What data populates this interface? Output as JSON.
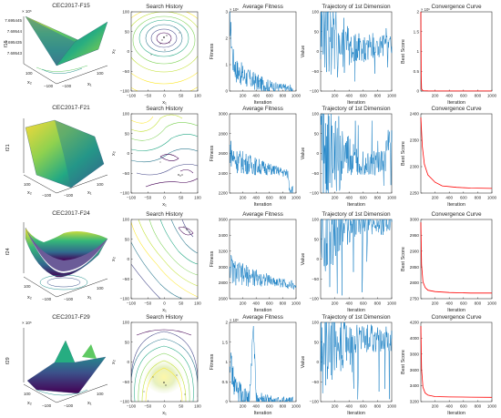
{
  "figure": {
    "rows": [
      {
        "function": "CEC2017-F15",
        "surface": {
          "title": "CEC2017-F15",
          "zlabel": "f15",
          "x1label": "x₁",
          "x2label": "x₂",
          "zticks": [
            "7.695445",
            "7.69544",
            "7.695435",
            "7.69543"
          ],
          "zexp": "× 10⁶",
          "tickA": [
            "100",
            "−100"
          ],
          "tickB": [
            "−100",
            "100"
          ]
        },
        "history": {
          "title": "Search History",
          "xlabel": "x₁",
          "ylabel": "x₂",
          "xticks": [
            "−100",
            "−50",
            "0",
            "50",
            "100"
          ],
          "yticks": [
            "100",
            "50",
            "0",
            "−50",
            "−100"
          ]
        },
        "fitness": {
          "title": "Average Fitness",
          "xlabel": "Iteration",
          "ylabel": "Fitness",
          "xticks": [
            "200",
            "400",
            "600",
            "800",
            "1000"
          ],
          "yticks": [
            "3",
            "2",
            "1",
            "0"
          ],
          "yexp": "× 10⁶"
        },
        "trajectory": {
          "title": "Trajectory of 1st Dimension",
          "xlabel": "Iteration",
          "ylabel": "Value",
          "xticks": [
            "200",
            "400",
            "600",
            "800",
            "1000"
          ],
          "yticks": [
            "100",
            "50",
            "0",
            "−50",
            "−100"
          ]
        },
        "convergence": {
          "title": "Convergence Curve",
          "xlabel": "Iteration",
          "ylabel": "Best Score",
          "xticks": [
            "200",
            "400",
            "600",
            "800",
            "1000"
          ],
          "yticks": [
            "2",
            "1.5",
            "1",
            "0.5",
            "0"
          ],
          "yexp": "× 10⁶"
        }
      },
      {
        "function": "CEC2017-F21",
        "surface": {
          "title": "CEC2017-F21",
          "zlabel": "f21",
          "x1label": "x₁",
          "x2label": "x₂",
          "zticks": [],
          "zexp": "",
          "tickA": [
            "100",
            "−100"
          ],
          "tickB": [
            "−100",
            "100"
          ]
        },
        "history": {
          "title": "Search History",
          "xlabel": "x₁",
          "ylabel": "x₂",
          "xticks": [
            "−100",
            "−50",
            "0",
            "50",
            "100"
          ],
          "yticks": [
            "100",
            "50",
            "0",
            "−50",
            "−100"
          ]
        },
        "fitness": {
          "title": "Average Fitness",
          "xlabel": "Iteration",
          "ylabel": "Fitness",
          "xticks": [
            "200",
            "400",
            "600",
            "800",
            "1000"
          ],
          "yticks": [
            "3000",
            "2800",
            "2600",
            "2400",
            "2200"
          ],
          "yexp": ""
        },
        "trajectory": {
          "title": "Trajectory of 1st Dimension",
          "xlabel": "Iteration",
          "ylabel": "Value",
          "xticks": [
            "200",
            "400",
            "600",
            "800",
            "1000"
          ],
          "yticks": [
            "100",
            "50",
            "0",
            "−50",
            "−100"
          ]
        },
        "convergence": {
          "title": "Convergence Curve",
          "xlabel": "Iteration",
          "ylabel": "Best Score",
          "xticks": [
            "200",
            "400",
            "600",
            "800",
            "1000"
          ],
          "yticks": [
            "2400",
            "2350",
            "2300",
            "2250"
          ],
          "yexp": ""
        }
      },
      {
        "function": "CEC2017-F24",
        "surface": {
          "title": "CEC2017-F24",
          "zlabel": "f24",
          "x1label": "x₁",
          "x2label": "x₂",
          "zticks": [],
          "zexp": "",
          "tickA": [
            "100",
            "−100"
          ],
          "tickB": [
            "−100",
            "100"
          ]
        },
        "history": {
          "title": "Search History",
          "xlabel": "x₁",
          "ylabel": "x₂",
          "xticks": [
            "−100",
            "−50",
            "0",
            "50",
            "100"
          ],
          "yticks": [
            "100",
            "50",
            "0",
            "−50",
            "−100"
          ]
        },
        "fitness": {
          "title": "Average Fitness",
          "xlabel": "Iteration",
          "ylabel": "Fitness",
          "xticks": [
            "200",
            "400",
            "600",
            "800",
            "1000"
          ],
          "yticks": [
            "3600",
            "3400",
            "3200",
            "3000",
            "2800",
            "2600"
          ],
          "yexp": ""
        },
        "trajectory": {
          "title": "Trajectory of 1st Dimension",
          "xlabel": "Iteration",
          "ylabel": "Value",
          "xticks": [
            "200",
            "400",
            "600",
            "800",
            "1000"
          ],
          "yticks": [
            "100",
            "50",
            "0",
            "−50",
            "−100"
          ]
        },
        "convergence": {
          "title": "Convergence Curve",
          "xlabel": "Iteration",
          "ylabel": "Best Score",
          "xticks": [
            "200",
            "400",
            "600",
            "800",
            "1000"
          ],
          "yticks": [
            "3000",
            "2950",
            "2900",
            "2850",
            "2800",
            "2750"
          ],
          "yexp": ""
        }
      },
      {
        "function": "CEC2017-F29",
        "surface": {
          "title": "CEC2017-F29",
          "zlabel": "f29",
          "x1label": "x₁",
          "x2label": "x₂",
          "zticks": [],
          "zexp": "× 10⁶",
          "tickA": [
            "100",
            "−100"
          ],
          "tickB": [
            "−100",
            "100"
          ]
        },
        "history": {
          "title": "Search History",
          "xlabel": "x₁",
          "ylabel": "x₂",
          "xticks": [
            "−100",
            "−50",
            "0",
            "50",
            "100"
          ],
          "yticks": [
            "100",
            "50",
            "0",
            "−50",
            "−100"
          ]
        },
        "fitness": {
          "title": "Average Fitness",
          "xlabel": "Iteration",
          "ylabel": "Fitness",
          "xticks": [
            "200",
            "400",
            "600",
            "800",
            "1000"
          ],
          "yticks": [
            "2",
            "1.5",
            "1",
            "0.5",
            "0"
          ],
          "yexp": "× 10⁶"
        },
        "trajectory": {
          "title": "Trajectory of 1st Dimension",
          "xlabel": "Iteration",
          "ylabel": "Value",
          "xticks": [
            "200",
            "400",
            "600",
            "800",
            "1000"
          ],
          "yticks": [
            "100",
            "50",
            "0",
            "−50",
            "−100"
          ]
        },
        "convergence": {
          "title": "Convergence Curve",
          "xlabel": "Iteration",
          "ylabel": "Best Score",
          "xticks": [
            "200",
            "400",
            "600",
            "800",
            "1000"
          ],
          "yticks": [
            "4200",
            "4000",
            "3800",
            "3600",
            "3400",
            "3200"
          ],
          "yexp": ""
        }
      }
    ],
    "colors": {
      "line": "#0072BD",
      "convergence": "#FF0000",
      "axis": "#262626"
    }
  },
  "chart_data": [
    {
      "type": "line",
      "title": "Average Fitness",
      "function": "CEC2017-F15",
      "xlabel": "Iteration",
      "ylabel": "Fitness",
      "xlim": [
        0,
        1000
      ],
      "ylim": [
        0,
        3
      ],
      "yunit_multiplier": 1000000,
      "series": [
        {
          "x": [
            0,
            50,
            100,
            200,
            300,
            400,
            500,
            600,
            700,
            800,
            900,
            950
          ],
          "y": [
            2.9,
            1.2,
            0.8,
            0.6,
            0.45,
            0.35,
            0.25,
            0.2,
            0.15,
            0.12,
            0.08,
            0.1
          ]
        }
      ]
    },
    {
      "type": "line",
      "title": "Trajectory of 1st Dimension",
      "function": "CEC2017-F15",
      "xlabel": "Iteration",
      "ylabel": "Value",
      "xlim": [
        0,
        1000
      ],
      "ylim": [
        -100,
        100
      ],
      "series": [
        {
          "x": [
            0,
            100,
            200,
            300,
            400,
            500,
            600,
            700,
            800,
            900,
            1000
          ],
          "y": [
            90,
            60,
            30,
            20,
            15,
            8,
            5,
            10,
            12,
            12,
            12
          ]
        }
      ]
    },
    {
      "type": "line",
      "title": "Convergence Curve",
      "function": "CEC2017-F15",
      "xlabel": "Iteration",
      "ylabel": "Best Score",
      "xlim": [
        0,
        1000
      ],
      "ylim": [
        0,
        2
      ],
      "yunit_multiplier": 1000000,
      "series": [
        {
          "x": [
            0,
            5,
            10,
            30,
            100,
            500,
            1000
          ],
          "y": [
            2.0,
            0.4,
            0.05,
            0.01,
            0.005,
            0.003,
            0.003
          ]
        }
      ]
    },
    {
      "type": "line",
      "title": "Average Fitness",
      "function": "CEC2017-F21",
      "xlabel": "Iteration",
      "ylabel": "Fitness",
      "xlim": [
        0,
        1000
      ],
      "ylim": [
        2200,
        3000
      ],
      "series": [
        {
          "x": [
            0,
            50,
            100,
            200,
            300,
            400,
            500,
            600,
            700,
            800,
            880,
            900,
            950
          ],
          "y": [
            2650,
            2560,
            2530,
            2510,
            2490,
            2470,
            2460,
            2440,
            2430,
            2410,
            2390,
            2250,
            2240
          ]
        }
      ]
    },
    {
      "type": "line",
      "title": "Trajectory of 1st Dimension",
      "function": "CEC2017-F21",
      "xlabel": "Iteration",
      "ylabel": "Value",
      "xlim": [
        0,
        1000
      ],
      "ylim": [
        -100,
        100
      ],
      "series": [
        {
          "x": [
            0,
            100,
            200,
            300,
            400,
            500,
            600,
            700,
            800,
            900,
            940,
            1000
          ],
          "y": [
            10,
            5,
            -5,
            -10,
            -15,
            -20,
            -22,
            -25,
            -28,
            -30,
            30,
            28
          ]
        }
      ]
    },
    {
      "type": "line",
      "title": "Convergence Curve",
      "function": "CEC2017-F21",
      "xlabel": "Iteration",
      "ylabel": "Best Score",
      "xlim": [
        0,
        1000
      ],
      "ylim": [
        2220,
        2440
      ],
      "series": [
        {
          "x": [
            0,
            20,
            50,
            100,
            200,
            300,
            500,
            700,
            1000
          ],
          "y": [
            2430,
            2350,
            2300,
            2270,
            2250,
            2240,
            2236,
            2234,
            2233
          ]
        }
      ]
    },
    {
      "type": "line",
      "title": "Average Fitness",
      "function": "CEC2017-F24",
      "xlabel": "Iteration",
      "ylabel": "Fitness",
      "xlim": [
        0,
        1000
      ],
      "ylim": [
        2600,
        3600
      ],
      "series": [
        {
          "x": [
            0,
            50,
            100,
            200,
            300,
            400,
            500,
            600,
            700,
            800,
            900,
            1000
          ],
          "y": [
            3050,
            2950,
            2920,
            2900,
            2880,
            2860,
            2850,
            2830,
            2810,
            2800,
            2780,
            2760
          ]
        }
      ]
    },
    {
      "type": "line",
      "title": "Trajectory of 1st Dimension",
      "function": "CEC2017-F24",
      "xlabel": "Iteration",
      "ylabel": "Value",
      "xlim": [
        0,
        1000
      ],
      "ylim": [
        -100,
        100
      ],
      "series": [
        {
          "x": [
            0,
            100,
            200,
            300,
            400,
            500,
            600,
            700,
            800,
            900,
            1000
          ],
          "y": [
            95,
            92,
            90,
            93,
            95,
            94,
            95,
            95,
            96,
            93,
            93
          ]
        }
      ]
    },
    {
      "type": "line",
      "title": "Convergence Curve",
      "function": "CEC2017-F24",
      "xlabel": "Iteration",
      "ylabel": "Best Score",
      "xlim": [
        0,
        1000
      ],
      "ylim": [
        2730,
        3010
      ],
      "series": [
        {
          "x": [
            0,
            10,
            30,
            60,
            100,
            200,
            400,
            700,
            1000
          ],
          "y": [
            3000,
            2850,
            2790,
            2770,
            2760,
            2755,
            2752,
            2750,
            2750
          ]
        }
      ]
    },
    {
      "type": "line",
      "title": "Average Fitness",
      "function": "CEC2017-F29",
      "xlabel": "Iteration",
      "ylabel": "Fitness",
      "xlim": [
        0,
        1000
      ],
      "ylim": [
        0,
        2
      ],
      "yunit_multiplier": 1000000,
      "series": [
        {
          "x": [
            0,
            50,
            100,
            200,
            300,
            360,
            400,
            500,
            600,
            700,
            800,
            900,
            950
          ],
          "y": [
            1.2,
            0.6,
            0.3,
            0.1,
            0.05,
            1.9,
            0.04,
            0.02,
            0.01,
            0.01,
            0.01,
            0.01,
            0.01
          ]
        }
      ]
    },
    {
      "type": "line",
      "title": "Trajectory of 1st Dimension",
      "function": "CEC2017-F29",
      "xlabel": "Iteration",
      "ylabel": "Value",
      "xlim": [
        0,
        1000
      ],
      "ylim": [
        -100,
        100
      ],
      "series": [
        {
          "x": [
            0,
            100,
            200,
            300,
            400,
            500,
            600,
            700,
            800,
            900,
            1000
          ],
          "y": [
            50,
            55,
            60,
            58,
            57,
            60,
            58,
            60,
            60,
            58,
            58
          ]
        }
      ]
    },
    {
      "type": "line",
      "title": "Convergence Curve",
      "function": "CEC2017-F29",
      "xlabel": "Iteration",
      "ylabel": "Best Score",
      "xlim": [
        0,
        1000
      ],
      "ylim": [
        3150,
        4250
      ],
      "series": [
        {
          "x": [
            0,
            10,
            30,
            60,
            100,
            200,
            400,
            700,
            1000
          ],
          "y": [
            4200,
            3600,
            3350,
            3270,
            3240,
            3220,
            3215,
            3212,
            3210
          ]
        }
      ]
    }
  ]
}
